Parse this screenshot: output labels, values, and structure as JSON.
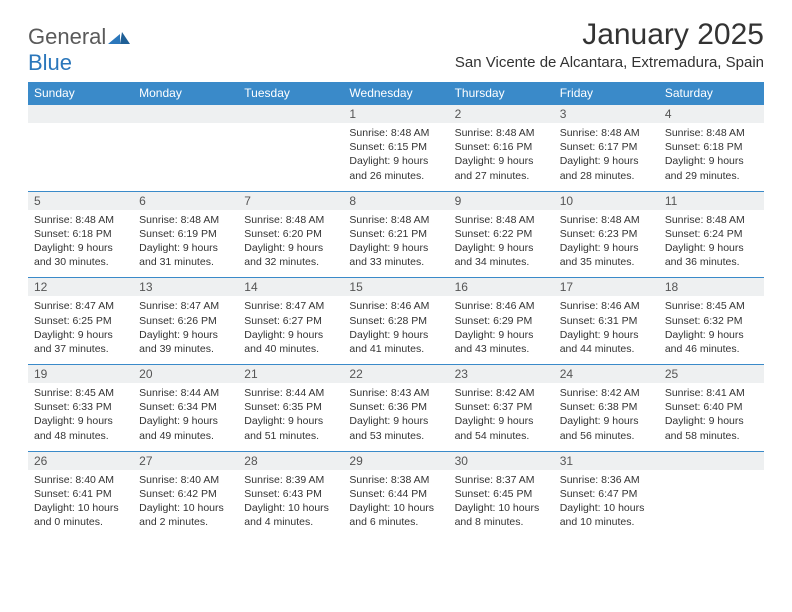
{
  "logo": {
    "word1": "General",
    "word2": "Blue"
  },
  "colors": {
    "header_bg": "#3a8ac9",
    "header_text": "#ffffff",
    "daynum_bg": "#eef0f1",
    "row_border": "#3a8ac9",
    "logo_gray": "#5a5a5a",
    "logo_blue": "#2b77bb"
  },
  "title": "January 2025",
  "location": "San Vicente de Alcantara, Extremadura, Spain",
  "day_headers": [
    "Sunday",
    "Monday",
    "Tuesday",
    "Wednesday",
    "Thursday",
    "Friday",
    "Saturday"
  ],
  "weeks": [
    [
      null,
      null,
      null,
      {
        "n": "1",
        "sr": "8:48 AM",
        "ss": "6:15 PM",
        "dl1": "Daylight: 9 hours",
        "dl2": "and 26 minutes."
      },
      {
        "n": "2",
        "sr": "8:48 AM",
        "ss": "6:16 PM",
        "dl1": "Daylight: 9 hours",
        "dl2": "and 27 minutes."
      },
      {
        "n": "3",
        "sr": "8:48 AM",
        "ss": "6:17 PM",
        "dl1": "Daylight: 9 hours",
        "dl2": "and 28 minutes."
      },
      {
        "n": "4",
        "sr": "8:48 AM",
        "ss": "6:18 PM",
        "dl1": "Daylight: 9 hours",
        "dl2": "and 29 minutes."
      }
    ],
    [
      {
        "n": "5",
        "sr": "8:48 AM",
        "ss": "6:18 PM",
        "dl1": "Daylight: 9 hours",
        "dl2": "and 30 minutes."
      },
      {
        "n": "6",
        "sr": "8:48 AM",
        "ss": "6:19 PM",
        "dl1": "Daylight: 9 hours",
        "dl2": "and 31 minutes."
      },
      {
        "n": "7",
        "sr": "8:48 AM",
        "ss": "6:20 PM",
        "dl1": "Daylight: 9 hours",
        "dl2": "and 32 minutes."
      },
      {
        "n": "8",
        "sr": "8:48 AM",
        "ss": "6:21 PM",
        "dl1": "Daylight: 9 hours",
        "dl2": "and 33 minutes."
      },
      {
        "n": "9",
        "sr": "8:48 AM",
        "ss": "6:22 PM",
        "dl1": "Daylight: 9 hours",
        "dl2": "and 34 minutes."
      },
      {
        "n": "10",
        "sr": "8:48 AM",
        "ss": "6:23 PM",
        "dl1": "Daylight: 9 hours",
        "dl2": "and 35 minutes."
      },
      {
        "n": "11",
        "sr": "8:48 AM",
        "ss": "6:24 PM",
        "dl1": "Daylight: 9 hours",
        "dl2": "and 36 minutes."
      }
    ],
    [
      {
        "n": "12",
        "sr": "8:47 AM",
        "ss": "6:25 PM",
        "dl1": "Daylight: 9 hours",
        "dl2": "and 37 minutes."
      },
      {
        "n": "13",
        "sr": "8:47 AM",
        "ss": "6:26 PM",
        "dl1": "Daylight: 9 hours",
        "dl2": "and 39 minutes."
      },
      {
        "n": "14",
        "sr": "8:47 AM",
        "ss": "6:27 PM",
        "dl1": "Daylight: 9 hours",
        "dl2": "and 40 minutes."
      },
      {
        "n": "15",
        "sr": "8:46 AM",
        "ss": "6:28 PM",
        "dl1": "Daylight: 9 hours",
        "dl2": "and 41 minutes."
      },
      {
        "n": "16",
        "sr": "8:46 AM",
        "ss": "6:29 PM",
        "dl1": "Daylight: 9 hours",
        "dl2": "and 43 minutes."
      },
      {
        "n": "17",
        "sr": "8:46 AM",
        "ss": "6:31 PM",
        "dl1": "Daylight: 9 hours",
        "dl2": "and 44 minutes."
      },
      {
        "n": "18",
        "sr": "8:45 AM",
        "ss": "6:32 PM",
        "dl1": "Daylight: 9 hours",
        "dl2": "and 46 minutes."
      }
    ],
    [
      {
        "n": "19",
        "sr": "8:45 AM",
        "ss": "6:33 PM",
        "dl1": "Daylight: 9 hours",
        "dl2": "and 48 minutes."
      },
      {
        "n": "20",
        "sr": "8:44 AM",
        "ss": "6:34 PM",
        "dl1": "Daylight: 9 hours",
        "dl2": "and 49 minutes."
      },
      {
        "n": "21",
        "sr": "8:44 AM",
        "ss": "6:35 PM",
        "dl1": "Daylight: 9 hours",
        "dl2": "and 51 minutes."
      },
      {
        "n": "22",
        "sr": "8:43 AM",
        "ss": "6:36 PM",
        "dl1": "Daylight: 9 hours",
        "dl2": "and 53 minutes."
      },
      {
        "n": "23",
        "sr": "8:42 AM",
        "ss": "6:37 PM",
        "dl1": "Daylight: 9 hours",
        "dl2": "and 54 minutes."
      },
      {
        "n": "24",
        "sr": "8:42 AM",
        "ss": "6:38 PM",
        "dl1": "Daylight: 9 hours",
        "dl2": "and 56 minutes."
      },
      {
        "n": "25",
        "sr": "8:41 AM",
        "ss": "6:40 PM",
        "dl1": "Daylight: 9 hours",
        "dl2": "and 58 minutes."
      }
    ],
    [
      {
        "n": "26",
        "sr": "8:40 AM",
        "ss": "6:41 PM",
        "dl1": "Daylight: 10 hours",
        "dl2": "and 0 minutes."
      },
      {
        "n": "27",
        "sr": "8:40 AM",
        "ss": "6:42 PM",
        "dl1": "Daylight: 10 hours",
        "dl2": "and 2 minutes."
      },
      {
        "n": "28",
        "sr": "8:39 AM",
        "ss": "6:43 PM",
        "dl1": "Daylight: 10 hours",
        "dl2": "and 4 minutes."
      },
      {
        "n": "29",
        "sr": "8:38 AM",
        "ss": "6:44 PM",
        "dl1": "Daylight: 10 hours",
        "dl2": "and 6 minutes."
      },
      {
        "n": "30",
        "sr": "8:37 AM",
        "ss": "6:45 PM",
        "dl1": "Daylight: 10 hours",
        "dl2": "and 8 minutes."
      },
      {
        "n": "31",
        "sr": "8:36 AM",
        "ss": "6:47 PM",
        "dl1": "Daylight: 10 hours",
        "dl2": "and 10 minutes."
      },
      null
    ]
  ],
  "labels": {
    "sunrise_prefix": "Sunrise: ",
    "sunset_prefix": "Sunset: "
  }
}
